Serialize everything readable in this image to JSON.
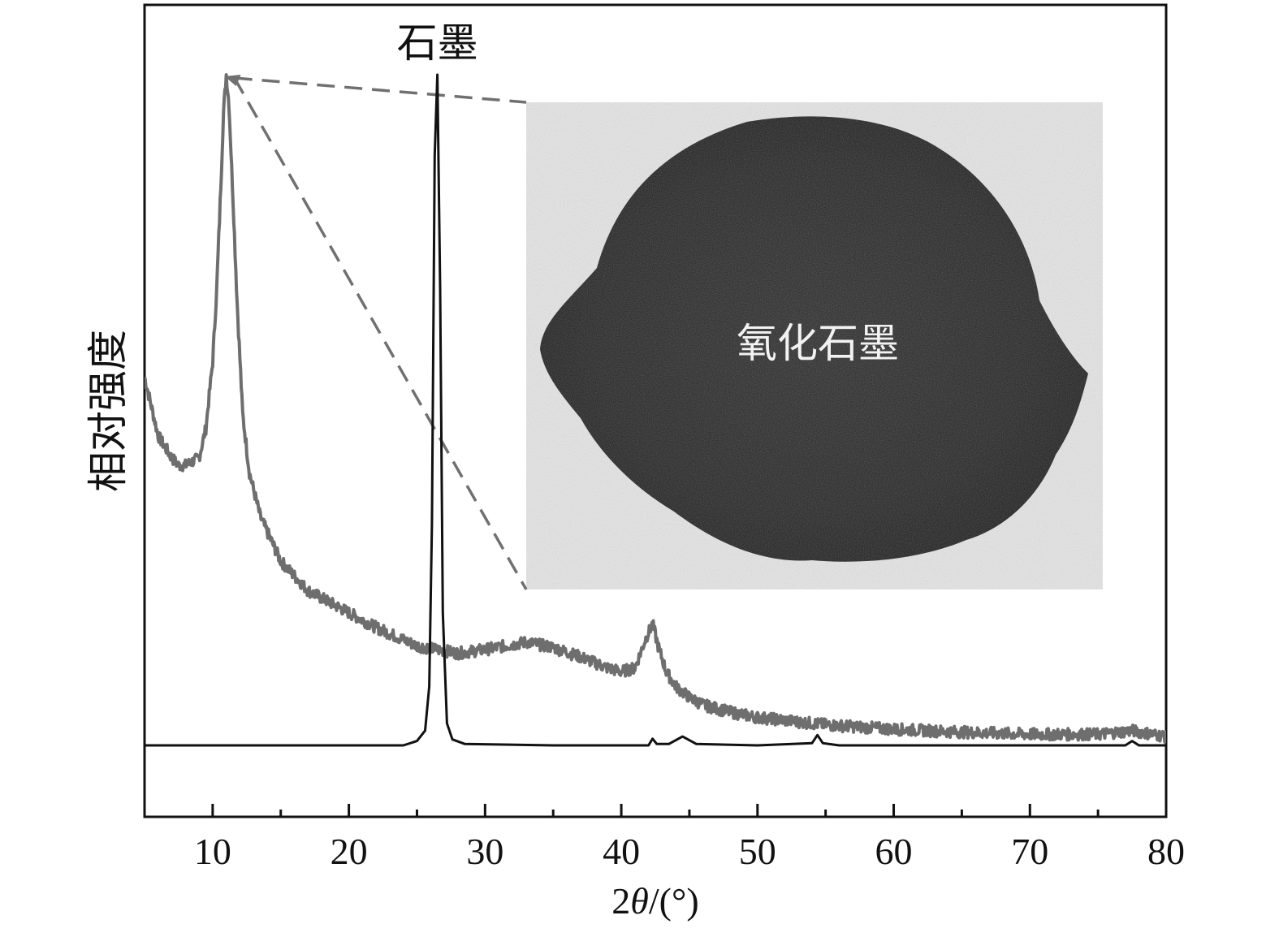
{
  "chart_data": {
    "type": "line",
    "xlabel_parts": {
      "prefix": "2",
      "theta": "θ",
      "suffix": "/(°)"
    },
    "ylabel": "相对强度",
    "xlim": [
      5,
      80
    ],
    "ylim": [
      0,
      100
    ],
    "x_ticks_major": [
      10,
      20,
      30,
      40,
      50,
      60,
      70,
      80
    ],
    "x_ticks_minor": [
      15,
      25,
      35,
      45,
      55,
      65,
      75
    ],
    "x_tick_labels": [
      "10",
      "20",
      "30",
      "40",
      "50",
      "60",
      "70",
      "80"
    ],
    "grid": false,
    "legend": "none",
    "series": [
      {
        "label": "氧化石墨",
        "color": "#6e6e6e",
        "x": [
          5,
          6,
          7,
          7.5,
          8,
          9,
          9.5,
          10,
          10.3,
          10.6,
          10.8,
          11,
          11.2,
          11.5,
          11.8,
          12.2,
          12.7,
          13.5,
          15,
          17,
          20,
          22,
          25,
          28,
          30,
          33,
          35,
          37,
          39,
          40,
          41,
          41.8,
          42.3,
          42.7,
          43.3,
          44,
          45,
          46,
          48,
          50,
          55,
          60,
          65,
          70,
          75,
          77.5,
          80
        ],
        "y": [
          50,
          42,
          39,
          38,
          38,
          39,
          43,
          52,
          62,
          76,
          86,
          91,
          87,
          74,
          60,
          45,
          37,
          31,
          25,
          21,
          18,
          16,
          13.5,
          12.5,
          13,
          14,
          13.3,
          12,
          10.5,
          10,
          10.5,
          14.5,
          16.5,
          13.5,
          10,
          8,
          6.5,
          5.5,
          4.5,
          3.8,
          2.8,
          2.2,
          1.8,
          1.5,
          1.5,
          2,
          1.2
        ]
      },
      {
        "label": "石墨",
        "color": "#111111",
        "x": [
          5,
          20,
          24,
          25,
          25.6,
          25.9,
          26.1,
          26.3,
          26.5,
          26.7,
          26.9,
          27.2,
          27.6,
          28.5,
          35,
          42,
          42.3,
          42.6,
          43.5,
          44.5,
          45.5,
          50,
          54,
          54.4,
          54.8,
          56,
          65,
          77,
          77.5,
          78,
          80
        ],
        "y": [
          0,
          0,
          0,
          0.6,
          2,
          8,
          30,
          80,
          91,
          62,
          18,
          3,
          0.8,
          0.2,
          0,
          0,
          0.9,
          0.2,
          0.2,
          1.2,
          0.2,
          0,
          0.3,
          1.4,
          0.3,
          0,
          0,
          0,
          0.6,
          0,
          0
        ]
      }
    ],
    "annotations": [
      {
        "text": "石墨",
        "x": 26.5
      },
      {
        "text": "氧化石墨",
        "role": "inset-photo-label"
      }
    ]
  }
}
